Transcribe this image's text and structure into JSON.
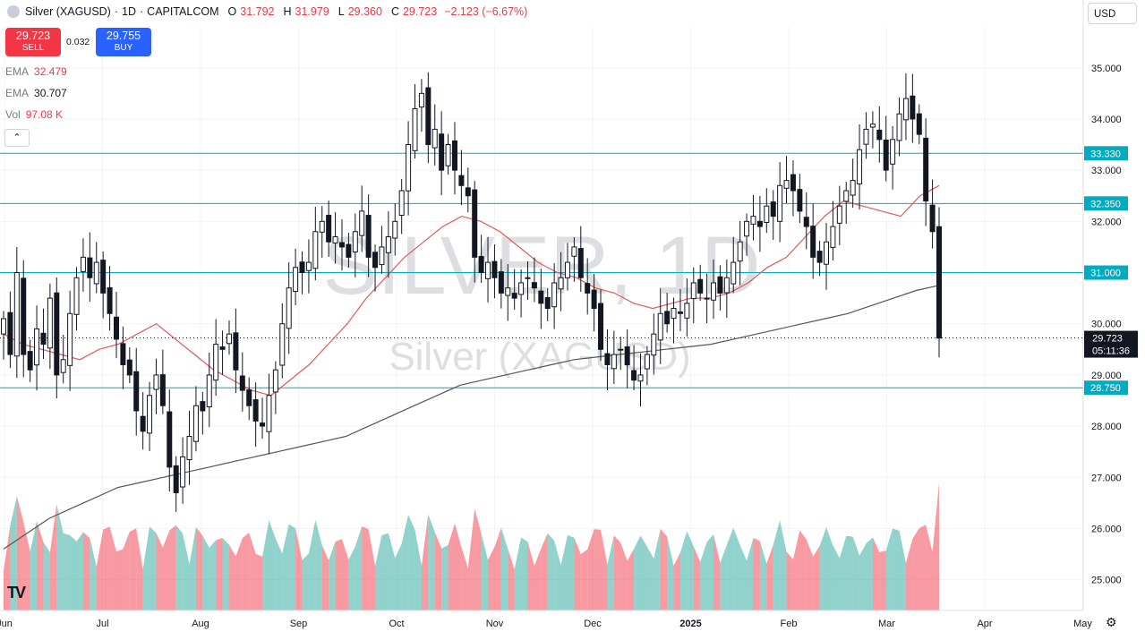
{
  "header": {
    "symbol": "Silver (XAGUSD)",
    "interval": "1D",
    "broker": "CAPITALCOM",
    "open_label": "O",
    "open": "31.792",
    "high_label": "H",
    "high": "31.979",
    "low_label": "L",
    "low": "29.360",
    "close_label": "C",
    "close": "29.723",
    "change": "−2.123 (−6.67%)"
  },
  "trade": {
    "sell_price": "29.723",
    "sell_label": "SELL",
    "spread": "0.032",
    "buy_price": "29.755",
    "buy_label": "BUY"
  },
  "indicators": [
    {
      "name": "EMA",
      "value": "32.479"
    },
    {
      "name": "EMA",
      "value": "30.707"
    },
    {
      "name": "Vol",
      "value": "97.08 K"
    }
  ],
  "currency": "USD",
  "watermark": {
    "big": "SILVER, 1D",
    "small": "Silver (XAGUSD)"
  },
  "colors": {
    "up": "#26a69a",
    "down": "#f23645",
    "ema_fast": "#e05a5a",
    "ema_slow": "#555555",
    "hline": "#00acc1",
    "price_label_bg": "#131722"
  },
  "chart_data": {
    "type": "candlestick",
    "x_ticks": [
      "Jun",
      "Jul",
      "Aug",
      "Sep",
      "Oct",
      "Nov",
      "Dec",
      "2025",
      "Feb",
      "Mar",
      "Apr",
      "May"
    ],
    "y_ticks": [
      "35.000",
      "34.000",
      "33.000",
      "32.000",
      "31.000",
      "30.000",
      "29.000",
      "28.000",
      "27.000",
      "26.000",
      "25.000"
    ],
    "ylim": [
      24.4,
      35.8
    ],
    "horizontal_levels": [
      {
        "value": 33.33,
        "label": "33.330"
      },
      {
        "value": 32.35,
        "label": "32.350"
      },
      {
        "value": 31.0,
        "label": "31.000"
      },
      {
        "value": 28.75,
        "label": "28.750"
      }
    ],
    "last_price": {
      "value": 29.723,
      "label": "29.723",
      "countdown": "05:11:36"
    },
    "close_path": [
      [
        "Jun",
        30.1
      ],
      [
        "Jun",
        29.4
      ],
      [
        "Jun",
        31.0
      ],
      [
        "Jun",
        29.4
      ],
      [
        "Jun",
        29.1
      ],
      [
        "Jun",
        29.9
      ],
      [
        "Jun",
        29.6
      ],
      [
        "Jun",
        30.5
      ],
      [
        "Jun",
        29.0
      ],
      [
        "Jun",
        29.3
      ],
      [
        "Jul",
        30.2
      ],
      [
        "Jul",
        30.9
      ],
      [
        "Jul",
        31.3
      ],
      [
        "Jul",
        30.9
      ],
      [
        "Jul",
        31.2
      ],
      [
        "Jul",
        30.6
      ],
      [
        "Jul",
        30.2
      ],
      [
        "Jul",
        29.7
      ],
      [
        "Jul",
        29.2
      ],
      [
        "Jul",
        29.0
      ],
      [
        "Jul",
        28.3
      ],
      [
        "Jul",
        27.9
      ],
      [
        "Jul",
        28.6
      ],
      [
        "Jul",
        29.0
      ],
      [
        "Aug",
        28.4
      ],
      [
        "Aug",
        27.2
      ],
      [
        "Aug",
        26.7
      ],
      [
        "Aug",
        27.4
      ],
      [
        "Aug",
        27.8
      ],
      [
        "Aug",
        28.4
      ],
      [
        "Aug",
        28.3
      ],
      [
        "Aug",
        29.0
      ],
      [
        "Aug",
        29.6
      ],
      [
        "Aug",
        29.5
      ],
      [
        "Aug",
        29.8
      ],
      [
        "Sep",
        29.1
      ],
      [
        "Sep",
        28.7
      ],
      [
        "Sep",
        28.4
      ],
      [
        "Sep",
        28.1
      ],
      [
        "Sep",
        28.0
      ],
      [
        "Sep",
        28.6
      ],
      [
        "Sep",
        29.1
      ],
      [
        "Sep",
        30.0
      ],
      [
        "Sep",
        30.7
      ],
      [
        "Sep",
        31.1
      ],
      [
        "Sep",
        31.0
      ],
      [
        "Sep",
        31.2
      ],
      [
        "Oct",
        31.8
      ],
      [
        "Oct",
        32.0
      ],
      [
        "Oct",
        31.6
      ],
      [
        "Oct",
        31.7
      ],
      [
        "Oct",
        31.5
      ],
      [
        "Oct",
        31.3
      ],
      [
        "Oct",
        31.8
      ],
      [
        "Oct",
        32.2
      ],
      [
        "Oct",
        31.3
      ],
      [
        "Oct",
        31.1
      ],
      [
        "Oct",
        31.5
      ],
      [
        "Oct",
        31.7
      ],
      [
        "Oct",
        32.0
      ],
      [
        "Oct",
        32.6
      ],
      [
        "Oct",
        33.5
      ],
      [
        "Oct",
        34.2
      ],
      [
        "Oct",
        34.5
      ],
      [
        "Oct",
        33.5
      ],
      [
        "Oct",
        33.8
      ],
      [
        "Nov",
        33.0
      ],
      [
        "Nov",
        33.5
      ],
      [
        "Nov",
        33.0
      ],
      [
        "Nov",
        32.7
      ],
      [
        "Nov",
        32.5
      ],
      [
        "Nov",
        31.3
      ],
      [
        "Nov",
        31.0
      ],
      [
        "Nov",
        31.2
      ],
      [
        "Nov",
        30.9
      ],
      [
        "Nov",
        30.6
      ],
      [
        "Nov",
        30.7
      ],
      [
        "Nov",
        30.5
      ],
      [
        "Nov",
        30.8
      ],
      [
        "Nov",
        30.9
      ],
      [
        "Dec",
        30.7
      ],
      [
        "Dec",
        30.4
      ],
      [
        "Dec",
        30.3
      ],
      [
        "Dec",
        30.8
      ],
      [
        "Dec",
        30.9
      ],
      [
        "Dec",
        31.2
      ],
      [
        "Dec",
        31.5
      ],
      [
        "Dec",
        30.9
      ],
      [
        "Dec",
        30.6
      ],
      [
        "Dec",
        30.3
      ],
      [
        "Dec",
        29.5
      ],
      [
        "Dec",
        29.2
      ],
      [
        "Dec",
        29.4
      ],
      [
        "Dec",
        29.5
      ],
      [
        "Dec",
        29.2
      ],
      [
        "Dec",
        28.9
      ],
      [
        "Dec",
        29.0
      ],
      [
        "2025",
        29.4
      ],
      [
        "2025",
        29.8
      ],
      [
        "2025",
        30.2
      ],
      [
        "2025",
        30.0
      ],
      [
        "2025",
        30.3
      ],
      [
        "2025",
        30.2
      ],
      [
        "2025",
        30.4
      ],
      [
        "2025",
        30.8
      ],
      [
        "2025",
        30.6
      ],
      [
        "2025",
        30.5
      ],
      [
        "2025",
        30.8
      ],
      [
        "2025",
        30.6
      ],
      [
        "2025",
        30.9
      ],
      [
        "2025",
        31.2
      ],
      [
        "Feb",
        31.6
      ],
      [
        "Feb",
        32.0
      ],
      [
        "Feb",
        32.1
      ],
      [
        "Feb",
        31.9
      ],
      [
        "Feb",
        32.3
      ],
      [
        "Feb",
        32.1
      ],
      [
        "Feb",
        32.7
      ],
      [
        "Feb",
        32.8
      ],
      [
        "Feb",
        32.6
      ],
      [
        "Feb",
        32.2
      ],
      [
        "Feb",
        31.9
      ],
      [
        "Mar",
        31.3
      ],
      [
        "Mar",
        31.2
      ],
      [
        "Mar",
        31.6
      ],
      [
        "Mar",
        31.9
      ],
      [
        "Mar",
        32.3
      ],
      [
        "Mar",
        32.6
      ],
      [
        "Mar",
        32.8
      ],
      [
        "Mar",
        33.4
      ],
      [
        "Mar",
        33.8
      ],
      [
        "Mar",
        33.9
      ],
      [
        "Mar",
        33.6
      ],
      [
        "Mar",
        33.0
      ],
      [
        "Mar",
        33.6
      ],
      [
        "Mar",
        34.1
      ],
      [
        "Mar",
        34.4
      ],
      [
        "Mar",
        34.0
      ],
      [
        "Apr",
        33.7
      ],
      [
        "Apr",
        32.4
      ],
      [
        "Apr",
        31.8
      ],
      [
        "Apr",
        29.72
      ]
    ],
    "ema_fast_values": [
      29.8,
      29.6,
      29.5,
      29.4,
      29.3,
      29.5,
      29.6,
      29.8,
      30.0,
      29.7,
      29.4,
      29.1,
      28.9,
      28.7,
      28.6,
      28.9,
      29.2,
      29.6,
      30.0,
      30.5,
      30.9,
      31.3,
      31.6,
      31.9,
      32.1,
      32.0,
      31.8,
      31.5,
      31.2,
      31.0,
      30.9,
      30.7,
      30.6,
      30.4,
      30.3,
      30.4,
      30.5,
      30.5,
      30.6,
      30.8,
      31.1,
      31.3,
      31.7,
      32.1,
      32.4,
      32.3,
      32.2,
      32.1,
      32.5,
      32.7
    ],
    "ema_slow_values": [
      25.6,
      25.9,
      26.2,
      26.4,
      26.6,
      26.8,
      26.9,
      27.0,
      27.1,
      27.2,
      27.3,
      27.4,
      27.5,
      27.6,
      27.7,
      27.8,
      28.0,
      28.2,
      28.4,
      28.6,
      28.8,
      28.9,
      29.0,
      29.1,
      29.2,
      29.3,
      29.35,
      29.4,
      29.45,
      29.5,
      29.55,
      29.6,
      29.7,
      29.8,
      29.9,
      30.0,
      30.1,
      30.2,
      30.35,
      30.5,
      30.65,
      30.75
    ],
    "volume_note": "relative daily volume bars, red = down day, teal = up day"
  }
}
